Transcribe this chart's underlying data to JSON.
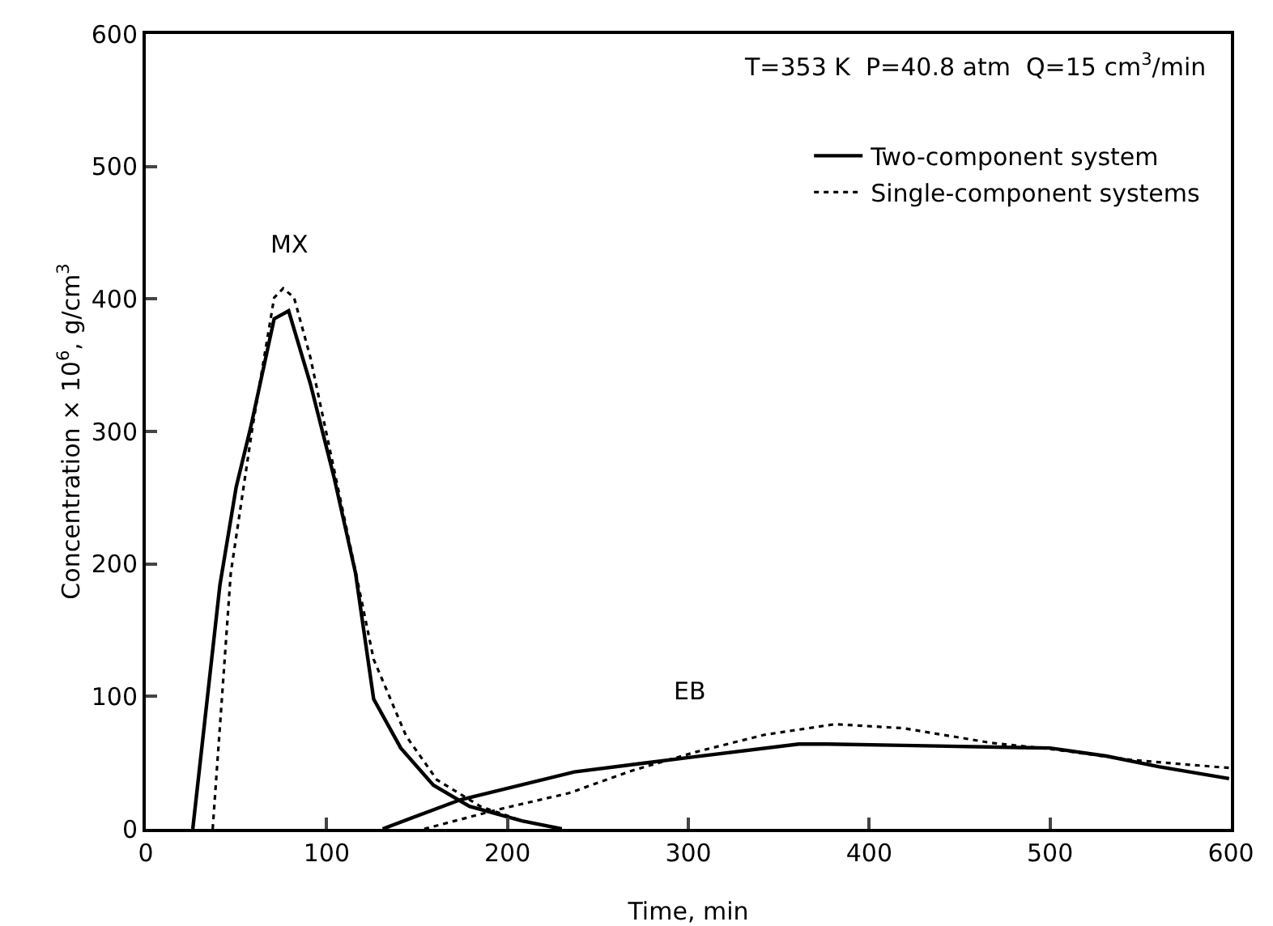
{
  "chart_data": {
    "type": "line",
    "xlabel": "Time, min",
    "ylabel": "Concentration × 10$^{6}$, g/cm$^{3}$",
    "xlim": [
      0,
      600
    ],
    "ylim": [
      0,
      600
    ],
    "xticks": [
      0,
      100,
      200,
      300,
      400,
      500,
      600
    ],
    "yticks": [
      0,
      100,
      200,
      300,
      400,
      500,
      600
    ],
    "grid": false,
    "legend": "top right",
    "marker": "none",
    "annotations": [
      "T=353 K  P=40.8 atm  Q=15 cm$^{3}$/min",
      {
        "text": "MX",
        "x": 79,
        "y": 391
      },
      {
        "text": "EB",
        "x": 301,
        "y": 54
      }
    ],
    "series": [
      {
        "name": "Two-component system",
        "color": "#000000",
        "line_style": "solid",
        "x": [
          26,
          41,
          50,
          58,
          71,
          79,
          91,
          104,
          116,
          126,
          141,
          159,
          179,
          208,
          230
        ],
        "values": [
          0,
          184,
          258,
          303,
          385,
          391,
          336,
          266,
          193,
          98,
          61,
          33,
          17,
          6,
          0
        ]
      },
      {
        "name": "Single-component systems",
        "color": "#000000",
        "line_style": "dotted",
        "x": [
          37,
          47,
          59,
          71,
          76,
          82,
          91,
          115,
          126,
          144,
          161,
          185,
          208,
          230
        ],
        "values": [
          0,
          193,
          303,
          401,
          408,
          401,
          356,
          201,
          128,
          70,
          37,
          17,
          6,
          0
        ]
      },
      {
        "color": "#000000",
        "line_style": "solid",
        "x": [
          131,
          174,
          237,
          272,
          301,
          361,
          377,
          419,
          500,
          531,
          560,
          599
        ],
        "values": [
          0,
          22,
          43,
          49,
          54,
          64,
          64,
          63,
          61,
          55,
          47,
          38
        ]
      },
      {
        "color": "#000000",
        "line_style": "dotted",
        "x": [
          154,
          196,
          234,
          269,
          304,
          342,
          381,
          419,
          467,
          502,
          545,
          599
        ],
        "values": [
          0,
          15,
          27,
          44,
          58,
          71,
          79,
          76,
          65,
          60,
          52,
          46
        ]
      }
    ]
  }
}
